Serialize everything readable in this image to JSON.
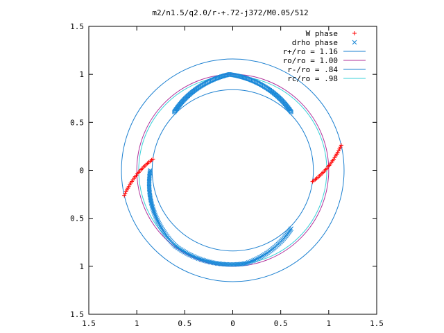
{
  "chart_data": {
    "type": "scatter",
    "title": "m2/n1.5/q2.0/r-+.72-j372/M0.05/512",
    "xlabel": "",
    "ylabel": "",
    "xlim": [
      -1.5,
      1.5
    ],
    "ylim": [
      -1.5,
      1.5
    ],
    "x_ticks": [
      -1.5,
      -1,
      -0.5,
      0,
      0.5,
      1,
      1.5
    ],
    "x_tick_labels": [
      "1.5",
      "1",
      "0.5",
      "0",
      "0.5",
      "1",
      "1.5"
    ],
    "y_ticks": [
      1.5,
      1,
      0.5,
      0,
      -0.5,
      -1,
      -1.5
    ],
    "y_tick_labels": [
      "1.5",
      "1",
      "0.5",
      "0",
      "0.5",
      "1",
      "1.5"
    ],
    "grid": false,
    "legend_position": "top-right",
    "series": [
      {
        "name": "W phase",
        "marker": "plus",
        "color": "#ff0000",
        "arcs": [
          {
            "r_start": 0.84,
            "r_end": 1.16,
            "theta_start_deg": 352,
            "theta_end_deg": 13
          },
          {
            "r_start": 0.84,
            "r_end": 1.16,
            "theta_start_deg": 172,
            "theta_end_deg": 193
          }
        ]
      },
      {
        "name": "drho phase",
        "marker": "cross",
        "color": "#1a88d8",
        "arcs": [
          {
            "r_start": 0.86,
            "r_end": 0.99,
            "theta_start_deg": 180,
            "theta_end_deg": 233
          },
          {
            "r_start": 0.99,
            "r_end": 0.98,
            "theta_start_deg": 233,
            "theta_end_deg": 278
          },
          {
            "r_start": 0.98,
            "r_end": 0.86,
            "theta_start_deg": 278,
            "theta_end_deg": 315
          }
        ]
      },
      {
        "name": "drho phase",
        "marker": "square",
        "color": "#1a88d8",
        "arcs": [
          {
            "r_start": 0.86,
            "r_end": 1.0,
            "theta_start_deg": 45,
            "theta_end_deg": 92
          },
          {
            "r_start": 1.0,
            "r_end": 0.86,
            "theta_start_deg": 92,
            "theta_end_deg": 135
          }
        ]
      }
    ],
    "circles": [
      {
        "name": "r+/ro = 1.16",
        "radius": 1.16,
        "color": "#1a7fd0"
      },
      {
        "name": "ro/ro = 1.00",
        "radius": 1.0,
        "color": "#b0309a"
      },
      {
        "name": "r-/ro = .84",
        "radius": 0.84,
        "color": "#1a7fd0"
      },
      {
        "name": "rc/ro = .98",
        "radius": 0.98,
        "color": "#38d0d8"
      }
    ]
  }
}
